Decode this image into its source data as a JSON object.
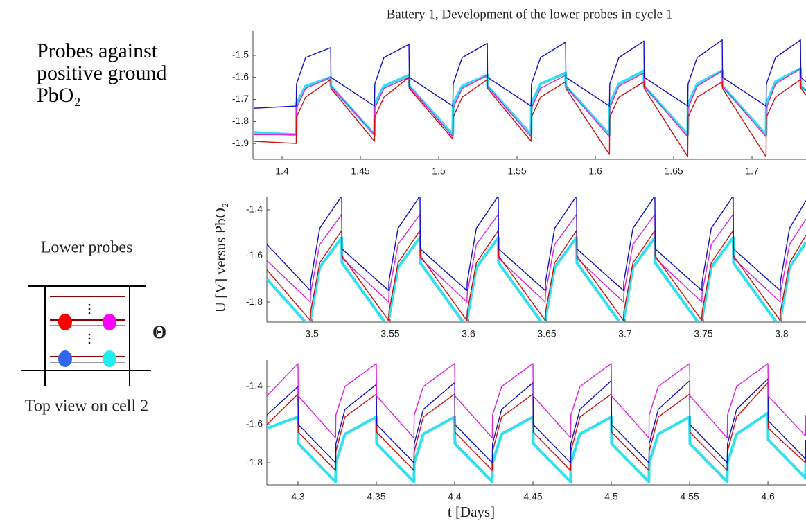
{
  "chart_data": [
    {
      "type": "line",
      "title": "Battery 1, Development of the lower probes in cycle 1",
      "x": [
        1.382,
        1.409,
        1.4092,
        1.415,
        1.431,
        1.4312,
        1.459,
        1.4592,
        1.465,
        1.481,
        1.4812,
        1.509,
        1.5092,
        1.515,
        1.531,
        1.5312,
        1.559,
        1.5592,
        1.565,
        1.581,
        1.5812,
        1.609,
        1.6092,
        1.615,
        1.631,
        1.6312,
        1.659,
        1.6592,
        1.665,
        1.681,
        1.6812,
        1.709,
        1.7092,
        1.715,
        1.731,
        1.7312,
        1.7345
      ],
      "series": [
        {
          "color": "#30e0f0",
          "values": [
            -1.85,
            -1.86,
            -1.72,
            -1.64,
            -1.6,
            -1.64,
            -1.86,
            -1.72,
            -1.64,
            -1.59,
            -1.64,
            -1.86,
            -1.72,
            -1.64,
            -1.59,
            -1.64,
            -1.86,
            -1.72,
            -1.63,
            -1.58,
            -1.64,
            -1.86,
            -1.72,
            -1.63,
            -1.57,
            -1.64,
            -1.86,
            -1.72,
            -1.63,
            -1.57,
            -1.64,
            -1.86,
            -1.72,
            -1.62,
            -1.56,
            -1.64,
            -1.66
          ]
        },
        {
          "color": "#e020e0",
          "values": [
            -1.86,
            -1.86,
            -1.74,
            -1.65,
            -1.6,
            -1.64,
            -1.86,
            -1.74,
            -1.65,
            -1.6,
            -1.64,
            -1.87,
            -1.74,
            -1.65,
            -1.59,
            -1.64,
            -1.87,
            -1.74,
            -1.65,
            -1.59,
            -1.64,
            -1.87,
            -1.74,
            -1.64,
            -1.58,
            -1.64,
            -1.87,
            -1.74,
            -1.64,
            -1.57,
            -1.64,
            -1.87,
            -1.74,
            -1.63,
            -1.56,
            -1.64,
            -1.66
          ]
        },
        {
          "color": "#d01010",
          "values": [
            -1.89,
            -1.9,
            -1.78,
            -1.69,
            -1.61,
            -1.65,
            -1.89,
            -1.78,
            -1.69,
            -1.6,
            -1.65,
            -1.88,
            -1.78,
            -1.69,
            -1.61,
            -1.65,
            -1.89,
            -1.78,
            -1.69,
            -1.62,
            -1.65,
            -1.95,
            -1.78,
            -1.69,
            -1.62,
            -1.65,
            -1.96,
            -1.78,
            -1.69,
            -1.62,
            -1.65,
            -1.96,
            -1.78,
            -1.69,
            -1.61,
            -1.65,
            -1.68
          ]
        },
        {
          "color": "#1010c0",
          "values": [
            -1.74,
            -1.73,
            -1.63,
            -1.51,
            -1.465,
            -1.6,
            -1.73,
            -1.63,
            -1.51,
            -1.45,
            -1.6,
            -1.73,
            -1.63,
            -1.51,
            -1.445,
            -1.6,
            -1.73,
            -1.63,
            -1.51,
            -1.44,
            -1.6,
            -1.73,
            -1.63,
            -1.51,
            -1.435,
            -1.6,
            -1.73,
            -1.63,
            -1.51,
            -1.43,
            -1.6,
            -1.73,
            -1.63,
            -1.51,
            -1.43,
            -1.6,
            -1.62
          ]
        }
      ],
      "xlim": [
        1.3814,
        1.7345
      ],
      "ylim": [
        -1.972,
        -1.39
      ],
      "xticks": [
        1.4,
        1.45,
        1.5,
        1.55,
        1.6,
        1.65,
        1.7
      ],
      "yticks": [
        -1.5,
        -1.6,
        -1.7,
        -1.8,
        -1.9
      ]
    },
    {
      "type": "line",
      "ylabel": "U [V] versus PbO₂",
      "x": [
        3.4712,
        3.499,
        3.4992,
        3.505,
        3.519,
        3.5192,
        3.549,
        3.5492,
        3.555,
        3.569,
        3.5692,
        3.599,
        3.5992,
        3.605,
        3.619,
        3.6192,
        3.649,
        3.6492,
        3.655,
        3.669,
        3.6692,
        3.699,
        3.6992,
        3.705,
        3.719,
        3.7192,
        3.749,
        3.7492,
        3.755,
        3.769,
        3.7692,
        3.799,
        3.7992,
        3.805,
        3.8155
      ],
      "series": [
        {
          "color": "#30e0f0",
          "values": [
            -1.7,
            -1.91,
            -1.87,
            -1.65,
            -1.52,
            -1.63,
            -1.91,
            -1.87,
            -1.65,
            -1.52,
            -1.63,
            -1.91,
            -1.87,
            -1.65,
            -1.52,
            -1.63,
            -1.91,
            -1.87,
            -1.65,
            -1.52,
            -1.63,
            -1.91,
            -1.87,
            -1.65,
            -1.52,
            -1.63,
            -1.91,
            -1.87,
            -1.65,
            -1.52,
            -1.63,
            -1.91,
            -1.87,
            -1.65,
            -1.54
          ]
        },
        {
          "color": "#e020e0",
          "values": [
            -1.62,
            -1.8,
            -1.76,
            -1.55,
            -1.42,
            -1.61,
            -1.8,
            -1.76,
            -1.55,
            -1.42,
            -1.61,
            -1.8,
            -1.76,
            -1.55,
            -1.42,
            -1.61,
            -1.8,
            -1.76,
            -1.55,
            -1.42,
            -1.61,
            -1.8,
            -1.76,
            -1.55,
            -1.42,
            -1.61,
            -1.8,
            -1.76,
            -1.55,
            -1.42,
            -1.61,
            -1.8,
            -1.76,
            -1.55,
            -1.44
          ]
        },
        {
          "color": "#d01010",
          "values": [
            -1.66,
            -1.88,
            -1.84,
            -1.63,
            -1.49,
            -1.6,
            -1.88,
            -1.84,
            -1.63,
            -1.49,
            -1.6,
            -1.88,
            -1.84,
            -1.63,
            -1.49,
            -1.6,
            -1.88,
            -1.84,
            -1.63,
            -1.49,
            -1.6,
            -1.88,
            -1.84,
            -1.63,
            -1.49,
            -1.6,
            -1.88,
            -1.84,
            -1.63,
            -1.49,
            -1.6,
            -1.88,
            -1.84,
            -1.63,
            -1.51
          ]
        },
        {
          "color": "#1010c0",
          "values": [
            -1.55,
            -1.75,
            -1.71,
            -1.48,
            -1.34,
            -1.57,
            -1.75,
            -1.71,
            -1.48,
            -1.34,
            -1.57,
            -1.75,
            -1.71,
            -1.48,
            -1.34,
            -1.57,
            -1.75,
            -1.71,
            -1.48,
            -1.34,
            -1.57,
            -1.75,
            -1.71,
            -1.48,
            -1.34,
            -1.57,
            -1.75,
            -1.71,
            -1.48,
            -1.34,
            -1.57,
            -1.75,
            -1.71,
            -1.48,
            -1.36
          ]
        }
      ],
      "xlim": [
        3.4712,
        3.8155
      ],
      "ylim": [
        -1.887,
        -1.346
      ],
      "xticks": [
        3.5,
        3.55,
        3.6,
        3.65,
        3.7,
        3.75,
        3.8
      ],
      "yticks": [
        -1.4,
        -1.6,
        -1.8
      ]
    },
    {
      "type": "line",
      "xlabel": "t [Days]",
      "x": [
        4.2801,
        4.3,
        4.3002,
        4.324,
        4.3242,
        4.33,
        4.35,
        4.3502,
        4.374,
        4.3742,
        4.38,
        4.4,
        4.4002,
        4.424,
        4.4242,
        4.43,
        4.45,
        4.4502,
        4.474,
        4.4742,
        4.48,
        4.5,
        4.5002,
        4.524,
        4.5242,
        4.53,
        4.55,
        4.5502,
        4.574,
        4.5742,
        4.58,
        4.6,
        4.6002,
        4.624,
        4.6242
      ],
      "series": [
        {
          "color": "#30e0f0",
          "values": [
            -1.62,
            -1.56,
            -1.7,
            -1.9,
            -1.8,
            -1.65,
            -1.56,
            -1.7,
            -1.9,
            -1.8,
            -1.65,
            -1.56,
            -1.7,
            -1.9,
            -1.8,
            -1.65,
            -1.56,
            -1.7,
            -1.9,
            -1.8,
            -1.65,
            -1.56,
            -1.7,
            -1.9,
            -1.8,
            -1.65,
            -1.56,
            -1.7,
            -1.9,
            -1.8,
            -1.65,
            -1.54,
            -1.68,
            -1.88,
            -1.78
          ]
        },
        {
          "color": "#d01010",
          "values": [
            -1.6,
            -1.44,
            -1.64,
            -1.84,
            -1.74,
            -1.56,
            -1.44,
            -1.64,
            -1.84,
            -1.74,
            -1.56,
            -1.44,
            -1.64,
            -1.84,
            -1.74,
            -1.56,
            -1.44,
            -1.64,
            -1.84,
            -1.74,
            -1.56,
            -1.44,
            -1.64,
            -1.84,
            -1.74,
            -1.56,
            -1.44,
            -1.64,
            -1.84,
            -1.74,
            -1.56,
            -1.38,
            -1.62,
            -1.8,
            -1.72
          ]
        },
        {
          "color": "#1010c0",
          "values": [
            -1.55,
            -1.4,
            -1.6,
            -1.8,
            -1.7,
            -1.52,
            -1.39,
            -1.6,
            -1.8,
            -1.7,
            -1.52,
            -1.38,
            -1.6,
            -1.8,
            -1.7,
            -1.52,
            -1.38,
            -1.6,
            -1.8,
            -1.7,
            -1.52,
            -1.37,
            -1.6,
            -1.8,
            -1.7,
            -1.52,
            -1.37,
            -1.6,
            -1.8,
            -1.7,
            -1.52,
            -1.36,
            -1.58,
            -1.78,
            -1.68
          ]
        },
        {
          "color": "#e020e0",
          "values": [
            -1.45,
            -1.28,
            -1.45,
            -1.67,
            -1.55,
            -1.4,
            -1.28,
            -1.45,
            -1.67,
            -1.55,
            -1.4,
            -1.28,
            -1.45,
            -1.67,
            -1.55,
            -1.4,
            -1.28,
            -1.45,
            -1.67,
            -1.55,
            -1.4,
            -1.28,
            -1.45,
            -1.67,
            -1.55,
            -1.4,
            -1.28,
            -1.45,
            -1.67,
            -1.55,
            -1.4,
            -1.28,
            -1.45,
            -1.66,
            -1.55
          ]
        }
      ],
      "xlim": [
        4.2801,
        4.6243
      ],
      "ylim": [
        -1.916,
        -1.262
      ],
      "xticks": [
        4.3,
        4.35,
        4.4,
        4.45,
        4.5,
        4.55,
        4.6
      ],
      "yticks": [
        -1.4,
        -1.6,
        -1.8
      ]
    }
  ],
  "left_panel": {
    "heading": "Probes against positive ground PbO₂",
    "diagram_title": "Lower probes",
    "symbol": "Θ",
    "caption": "Top view on cell 2"
  }
}
